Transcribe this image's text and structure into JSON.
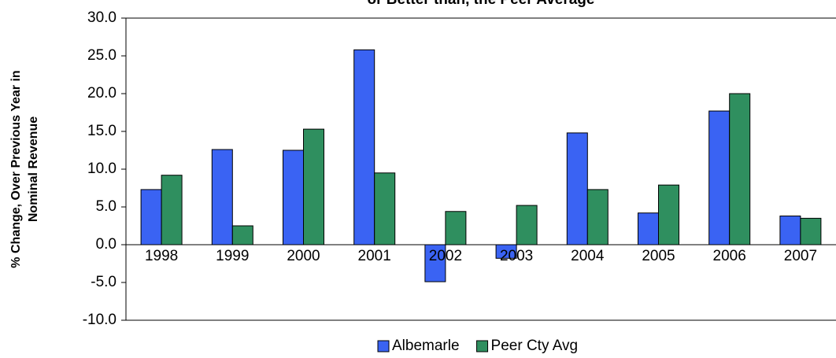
{
  "chart_data": {
    "type": "bar",
    "title": "or Better than, the Peer Average",
    "y_label_lines": [
      "% Change, Over Previous Year in",
      "Nominal Revenue"
    ],
    "categories": [
      "1998",
      "1999",
      "2000",
      "2001",
      "2002",
      "2003",
      "2004",
      "2005",
      "2006",
      "2007"
    ],
    "series": [
      {
        "name": "Albemarle",
        "color": "#3a63f3",
        "values": [
          7.3,
          12.6,
          12.5,
          25.8,
          -4.9,
          -1.8,
          14.8,
          4.2,
          17.7,
          3.8
        ]
      },
      {
        "name": "Peer Cty Avg",
        "color": "#2f8f5f",
        "values": [
          9.2,
          2.5,
          15.3,
          9.5,
          4.4,
          5.2,
          7.3,
          7.9,
          20.0,
          3.5
        ]
      }
    ],
    "ylim": [
      -10,
      30
    ],
    "yticks": [
      {
        "value": -10,
        "label": "-10.0"
      },
      {
        "value": -5,
        "label": "-5.0"
      },
      {
        "value": 0,
        "label": "0.0"
      },
      {
        "value": 5,
        "label": "5.0"
      },
      {
        "value": 10,
        "label": "10.0"
      },
      {
        "value": 15,
        "label": "15.0"
      },
      {
        "value": 20,
        "label": "20.0"
      },
      {
        "value": 25,
        "label": "25.0"
      },
      {
        "value": 30,
        "label": "30.0"
      }
    ],
    "legend": "bottom"
  }
}
